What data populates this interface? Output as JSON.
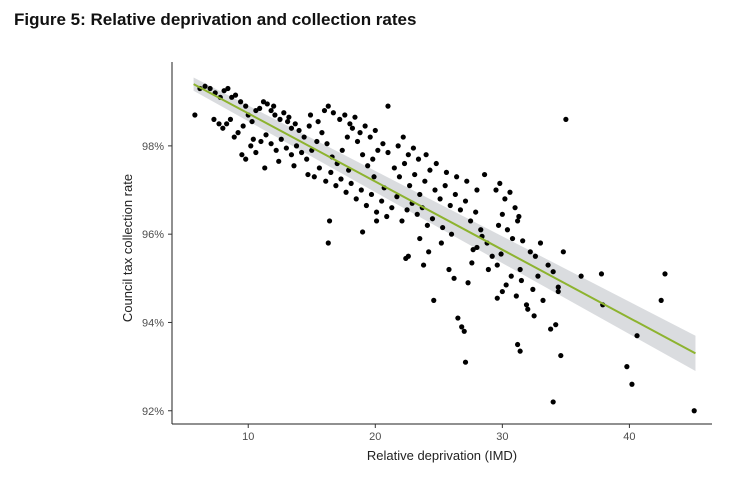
{
  "figure": {
    "title": "Figure 5: Relative deprivation and collection rates"
  },
  "chart_data": {
    "type": "scatter",
    "xlabel": "Relative deprivation (IMD)",
    "ylabel": "Council tax collection rate",
    "xlim": [
      4,
      46.5
    ],
    "ylim": [
      91.7,
      99.9
    ],
    "x_ticks": [
      10,
      20,
      30,
      40
    ],
    "x_tick_labels": [
      "10",
      "20",
      "30",
      "40"
    ],
    "y_ticks": [
      92,
      94,
      96,
      98
    ],
    "y_tick_labels": [
      "92%",
      "94%",
      "96%",
      "98%"
    ],
    "grid": false,
    "legend": "none",
    "colors": {
      "points": "#000000",
      "trend": "#8db32f",
      "band": "#d3d6d9"
    },
    "trend_line": {
      "x": [
        5.7,
        45.2
      ],
      "y": [
        99.4,
        93.3
      ]
    },
    "confidence_band": {
      "x": [
        5.7,
        45.2
      ],
      "upper": [
        99.55,
        93.7
      ],
      "lower": [
        99.25,
        92.9
      ]
    },
    "points": [
      [
        5.8,
        98.7
      ],
      [
        6.2,
        99.3
      ],
      [
        6.6,
        99.35
      ],
      [
        7.0,
        99.3
      ],
      [
        7.4,
        99.2
      ],
      [
        7.8,
        99.1
      ],
      [
        8.1,
        99.25
      ],
      [
        8.4,
        99.3
      ],
      [
        8.7,
        99.1
      ],
      [
        9.0,
        99.15
      ],
      [
        9.4,
        99.0
      ],
      [
        9.8,
        98.9
      ],
      [
        7.3,
        98.6
      ],
      [
        7.7,
        98.5
      ],
      [
        8.0,
        98.4
      ],
      [
        8.3,
        98.5
      ],
      [
        8.6,
        98.6
      ],
      [
        8.9,
        98.2
      ],
      [
        9.2,
        98.3
      ],
      [
        9.6,
        98.45
      ],
      [
        10.0,
        98.7
      ],
      [
        10.3,
        98.55
      ],
      [
        10.6,
        98.8
      ],
      [
        10.9,
        98.85
      ],
      [
        11.2,
        99.0
      ],
      [
        11.5,
        98.95
      ],
      [
        11.8,
        98.8
      ],
      [
        12.1,
        98.7
      ],
      [
        12.5,
        98.6
      ],
      [
        12.8,
        98.75
      ],
      [
        13.1,
        98.55
      ],
      [
        13.4,
        98.4
      ],
      [
        13.7,
        98.5
      ],
      [
        14.0,
        98.35
      ],
      [
        14.4,
        98.2
      ],
      [
        14.8,
        98.45
      ],
      [
        9.5,
        97.8
      ],
      [
        9.8,
        97.7
      ],
      [
        10.2,
        98.0
      ],
      [
        10.6,
        97.85
      ],
      [
        11.0,
        98.1
      ],
      [
        11.4,
        98.25
      ],
      [
        11.8,
        98.05
      ],
      [
        12.2,
        97.9
      ],
      [
        12.6,
        98.15
      ],
      [
        13.0,
        97.95
      ],
      [
        13.4,
        97.8
      ],
      [
        13.8,
        98.0
      ],
      [
        14.2,
        97.85
      ],
      [
        14.6,
        97.7
      ],
      [
        15.0,
        97.9
      ],
      [
        15.4,
        98.1
      ],
      [
        15.8,
        98.3
      ],
      [
        16.2,
        98.05
      ],
      [
        16.6,
        97.75
      ],
      [
        17.0,
        97.6
      ],
      [
        17.4,
        97.9
      ],
      [
        17.8,
        98.2
      ],
      [
        18.2,
        98.4
      ],
      [
        18.6,
        98.1
      ],
      [
        19.0,
        97.8
      ],
      [
        19.4,
        97.55
      ],
      [
        19.8,
        97.7
      ],
      [
        20.2,
        97.9
      ],
      [
        20.6,
        98.05
      ],
      [
        21.0,
        97.85
      ],
      [
        16.0,
        98.8
      ],
      [
        16.3,
        98.9
      ],
      [
        16.7,
        98.75
      ],
      [
        17.2,
        98.6
      ],
      [
        17.6,
        98.7
      ],
      [
        18.0,
        98.5
      ],
      [
        18.4,
        98.65
      ],
      [
        18.8,
        98.3
      ],
      [
        19.2,
        98.45
      ],
      [
        19.6,
        98.2
      ],
      [
        20.0,
        98.35
      ],
      [
        21.0,
        98.9
      ],
      [
        15.2,
        97.3
      ],
      [
        15.6,
        97.5
      ],
      [
        16.1,
        97.2
      ],
      [
        16.5,
        97.4
      ],
      [
        16.9,
        97.1
      ],
      [
        17.3,
        97.25
      ],
      [
        17.7,
        96.95
      ],
      [
        18.1,
        97.15
      ],
      [
        18.5,
        96.8
      ],
      [
        18.9,
        97.0
      ],
      [
        19.3,
        96.65
      ],
      [
        19.7,
        96.9
      ],
      [
        20.1,
        96.5
      ],
      [
        20.5,
        96.75
      ],
      [
        20.9,
        96.4
      ],
      [
        21.3,
        96.6
      ],
      [
        21.7,
        96.85
      ],
      [
        22.1,
        96.3
      ],
      [
        22.5,
        96.55
      ],
      [
        22.9,
        96.7
      ],
      [
        23.3,
        96.45
      ],
      [
        23.7,
        96.6
      ],
      [
        24.1,
        96.2
      ],
      [
        24.5,
        96.35
      ],
      [
        21.5,
        97.5
      ],
      [
        21.9,
        97.3
      ],
      [
        22.3,
        97.6
      ],
      [
        22.7,
        97.1
      ],
      [
        23.1,
        97.35
      ],
      [
        23.5,
        96.9
      ],
      [
        23.9,
        97.2
      ],
      [
        24.3,
        97.45
      ],
      [
        24.7,
        97.0
      ],
      [
        25.1,
        96.8
      ],
      [
        25.5,
        97.1
      ],
      [
        25.9,
        96.65
      ],
      [
        26.3,
        96.9
      ],
      [
        26.7,
        96.55
      ],
      [
        27.1,
        96.75
      ],
      [
        27.5,
        96.3
      ],
      [
        27.9,
        96.5
      ],
      [
        28.3,
        96.1
      ],
      [
        21.8,
        98.0
      ],
      [
        22.2,
        98.2
      ],
      [
        22.6,
        97.8
      ],
      [
        23.0,
        97.95
      ],
      [
        23.4,
        97.7
      ],
      [
        24.0,
        97.8
      ],
      [
        24.8,
        97.6
      ],
      [
        25.6,
        97.4
      ],
      [
        26.4,
        97.3
      ],
      [
        27.2,
        97.2
      ],
      [
        28.0,
        97.0
      ],
      [
        28.6,
        97.35
      ],
      [
        16.3,
        95.8
      ],
      [
        16.4,
        96.3
      ],
      [
        19.0,
        96.05
      ],
      [
        20.1,
        96.3
      ],
      [
        22.4,
        95.45
      ],
      [
        22.6,
        95.5
      ],
      [
        23.5,
        95.9
      ],
      [
        24.2,
        95.6
      ],
      [
        24.6,
        94.5
      ],
      [
        25.2,
        95.8
      ],
      [
        25.8,
        95.2
      ],
      [
        26.2,
        95.0
      ],
      [
        26.5,
        94.1
      ],
      [
        26.8,
        93.9
      ],
      [
        27.0,
        93.8
      ],
      [
        27.1,
        93.1
      ],
      [
        27.3,
        94.9
      ],
      [
        27.6,
        95.35
      ],
      [
        28.0,
        95.7
      ],
      [
        28.4,
        95.95
      ],
      [
        28.8,
        95.8
      ],
      [
        29.2,
        95.5
      ],
      [
        29.6,
        95.3
      ],
      [
        29.9,
        95.55
      ],
      [
        29.7,
        96.2
      ],
      [
        30.0,
        96.45
      ],
      [
        30.4,
        96.1
      ],
      [
        30.8,
        95.9
      ],
      [
        31.2,
        96.3
      ],
      [
        31.6,
        95.85
      ],
      [
        29.5,
        97.0
      ],
      [
        29.8,
        97.15
      ],
      [
        30.2,
        96.8
      ],
      [
        30.6,
        96.95
      ],
      [
        31.0,
        96.6
      ],
      [
        31.3,
        96.4
      ],
      [
        30.0,
        94.7
      ],
      [
        30.3,
        94.85
      ],
      [
        30.7,
        95.05
      ],
      [
        31.1,
        94.6
      ],
      [
        31.5,
        94.95
      ],
      [
        31.9,
        94.4
      ],
      [
        29.6,
        94.55
      ],
      [
        31.4,
        95.2
      ],
      [
        32.0,
        94.3
      ],
      [
        32.4,
        94.75
      ],
      [
        32.8,
        95.05
      ],
      [
        33.2,
        94.5
      ],
      [
        32.2,
        95.6
      ],
      [
        32.6,
        95.5
      ],
      [
        33.0,
        95.8
      ],
      [
        33.6,
        95.3
      ],
      [
        34.0,
        95.15
      ],
      [
        34.4,
        94.8
      ],
      [
        31.2,
        93.5
      ],
      [
        31.4,
        93.35
      ],
      [
        32.5,
        94.15
      ],
      [
        33.8,
        93.85
      ],
      [
        34.2,
        93.95
      ],
      [
        34.6,
        93.25
      ],
      [
        34.4,
        94.7
      ],
      [
        34.8,
        95.6
      ],
      [
        35.0,
        98.6
      ],
      [
        34.0,
        92.2
      ],
      [
        36.2,
        95.05
      ],
      [
        37.8,
        95.1
      ],
      [
        37.9,
        94.4
      ],
      [
        39.8,
        93.0
      ],
      [
        40.2,
        92.6
      ],
      [
        40.6,
        93.7
      ],
      [
        42.5,
        94.5
      ],
      [
        42.8,
        95.1
      ],
      [
        45.1,
        92.0
      ],
      [
        12.0,
        98.9
      ],
      [
        13.2,
        98.65
      ],
      [
        14.9,
        98.7
      ],
      [
        15.5,
        98.55
      ],
      [
        11.3,
        97.5
      ],
      [
        10.4,
        98.15
      ],
      [
        12.4,
        97.65
      ],
      [
        13.6,
        97.55
      ],
      [
        14.7,
        97.35
      ],
      [
        17.9,
        97.45
      ],
      [
        19.9,
        97.3
      ],
      [
        20.7,
        97.05
      ],
      [
        25.3,
        96.15
      ],
      [
        26.0,
        96.0
      ],
      [
        27.7,
        95.65
      ],
      [
        28.9,
        95.2
      ],
      [
        23.8,
        95.3
      ]
    ]
  }
}
